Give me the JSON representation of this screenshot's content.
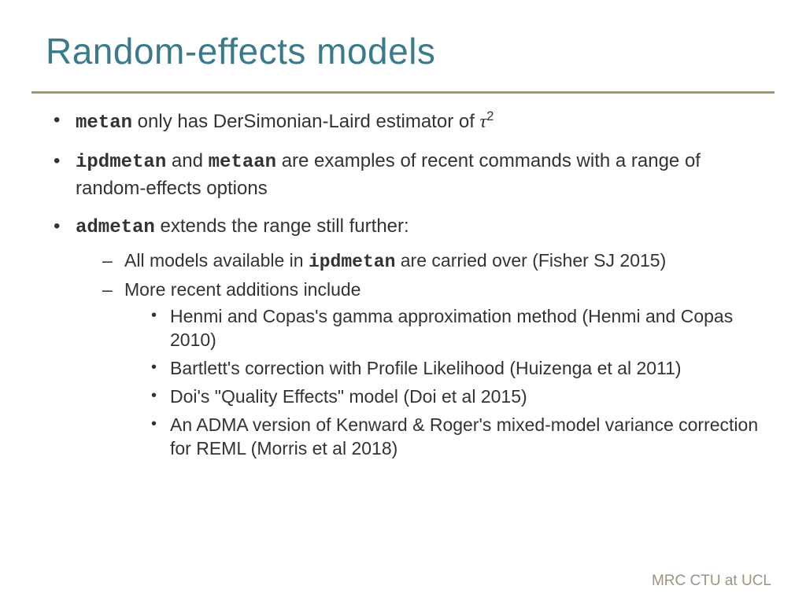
{
  "title": "Random-effects models",
  "colors": {
    "title_color": "#3a7a8a",
    "rule_color": "#9e9480",
    "text_color": "#333333",
    "footer_color": "#9e9480",
    "background": "#ffffff"
  },
  "typography": {
    "title_fontsize": 46,
    "body_fontsize": 24,
    "sub_fontsize": 23,
    "footer_fontsize": 19,
    "mono_family": "Courier New"
  },
  "bullets": {
    "b1": {
      "cmd1": "metan",
      "text_after": " only has DerSimonian-Laird estimator of ",
      "tau": "τ",
      "tau_sup": "2"
    },
    "b2": {
      "cmd1": "ipdmetan",
      "mid1": " and ",
      "cmd2": "metaan",
      "text_after": " are examples of recent commands with a range of random-effects options"
    },
    "b3": {
      "cmd1": "admetan",
      "text_after": " extends the range still further:"
    },
    "b3_sub1": {
      "before": "All models available in ",
      "cmd": "ipdmetan",
      "after": " are carried over (Fisher SJ 2015)"
    },
    "b3_sub2": "More recent additions include",
    "b3_sub2_items": {
      "i1": "Henmi and Copas's  gamma approximation method (Henmi and Copas 2010)",
      "i2": "Bartlett's correction with Profile Likelihood (Huizenga et al 2011)",
      "i3": "Doi's \"Quality Effects\" model (Doi et al 2015)",
      "i4": "An ADMA version of Kenward & Roger's mixed-model variance correction for REML (Morris et al 2018)"
    }
  },
  "footer": "MRC CTU at UCL"
}
